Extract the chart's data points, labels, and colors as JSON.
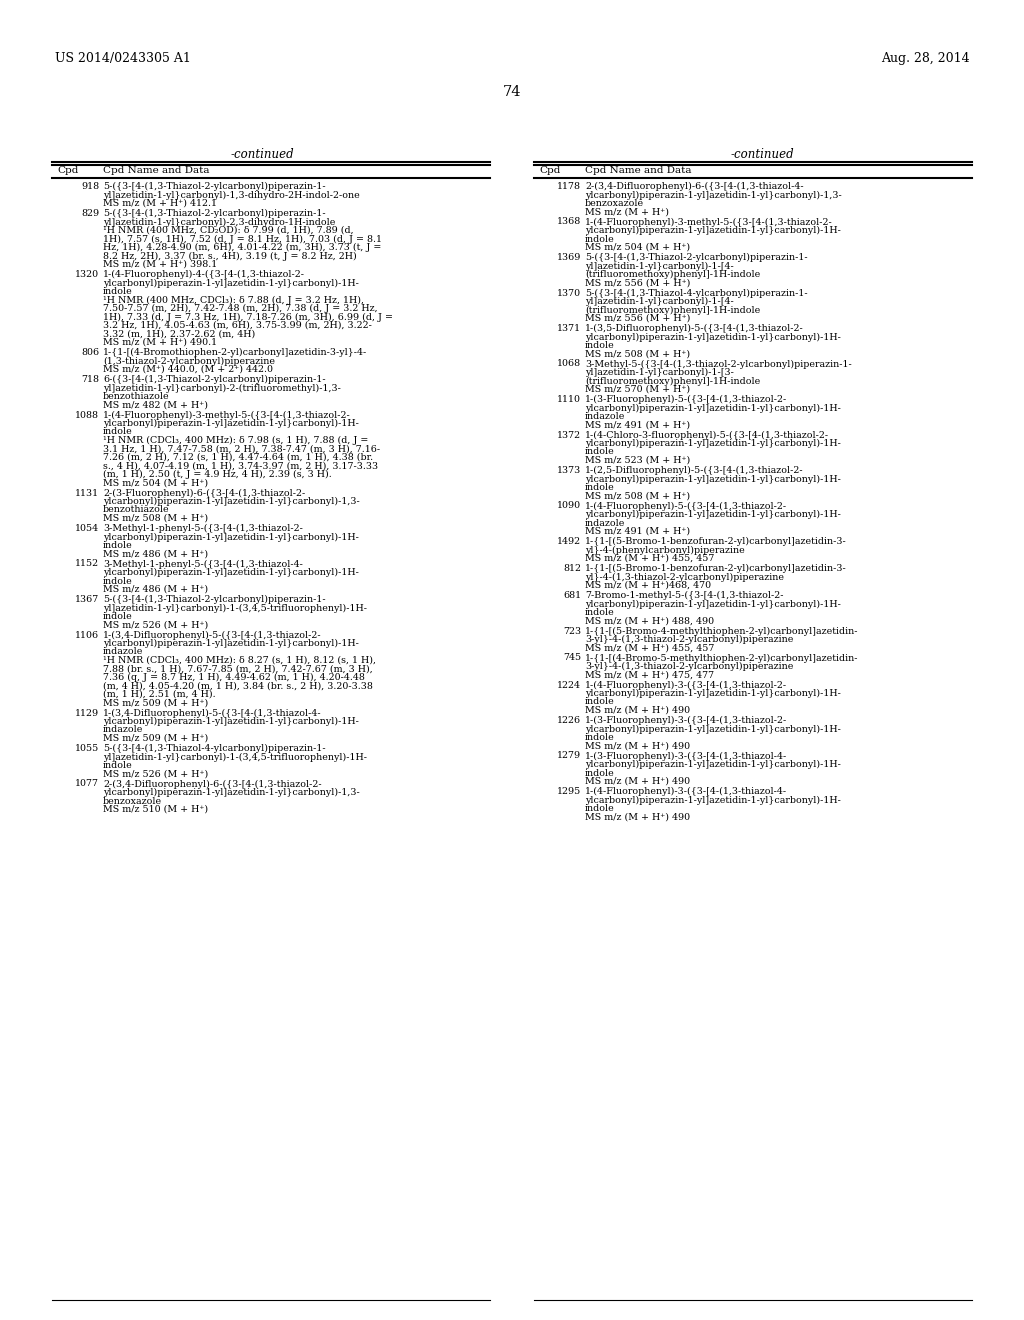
{
  "background_color": "#ffffff",
  "header_left": "US 2014/0243305 A1",
  "header_right": "Aug. 28, 2014",
  "page_number": "74",
  "continued_label": "-continued",
  "col_header_cpd": "Cpd",
  "col_header_data": "Cpd Name and Data",
  "left_column": [
    {
      "cpd": "918",
      "text": "5-({3-[4-(1,3-Thiazol-2-ylcarbonyl)piperazin-1-\nyl]azetidin-1-yl}carbonyl)-1,3-dihydro-2H-indol-2-one\nMS m/z (M + H⁺) 412.1"
    },
    {
      "cpd": "829",
      "text": "5-({3-[4-(1,3-Thiazol-2-ylcarbonyl)piperazin-1-\nyl]azetidin-1-yl}carbonyl)-2,3-dihydro-1H-indole\n¹H NMR (400 MHz, CD₂OD): δ 7.99 (d, 1H), 7.89 (d,\n1H), 7.57 (s, 1H), 7.52 (d, J = 8.1 Hz, 1H), 7.03 (d, J = 8.1\nHz, 1H), 4.28-4.90 (m, 6H), 4.01-4.22 (m, 3H), 3.73 (t, J =\n8.2 Hz, 2H), 3.37 (br. s., 4H), 3.19 (t, J = 8.2 Hz, 2H)\nMS m/z (M + H⁺) 398.1"
    },
    {
      "cpd": "1320",
      "text": "1-(4-Fluorophenyl)-4-({3-[4-(1,3-thiazol-2-\nylcarbonyl)piperazin-1-yl]azetidin-1-yl}carbonyl)-1H-\nindole\n¹H NMR (400 MHz, CDCl₃): δ 7.88 (d, J = 3.2 Hz, 1H),\n7.50-7.57 (m, 2H), 7.42-7.48 (m, 2H), 7.38 (d, J = 3.2 Hz,\n1H), 7.33 (d, J = 7.3 Hz, 1H), 7.18-7.26 (m, 3H), 6.99 (d, J =\n3.2 Hz, 1H), 4.05-4.63 (m, 6H), 3.75-3.99 (m, 2H), 3.22-\n3.32 (m, 1H), 2.37-2.62 (m, 4H)\nMS m/z (M + H⁺) 490.1"
    },
    {
      "cpd": "806",
      "text": "1-{1-[(4-Bromothiophen-2-yl)carbonyl]azetidin-3-yl}-4-\n(1,3-thiazol-2-ylcarbonyl)piperazine\nMS m/z (M⁺) 440.0, (M + 2⁺) 442.0"
    },
    {
      "cpd": "718",
      "text": "6-({3-[4-(1,3-Thiazol-2-ylcarbonyl)piperazin-1-\nyl]azetidin-1-yl}carbonyl)-2-(trifluoromethyl)-1,3-\nbenzothiazole\nMS m/z 482 (M + H⁺)"
    },
    {
      "cpd": "1088",
      "text": "1-(4-Fluorophenyl)-3-methyl-5-({3-[4-(1,3-thiazol-2-\nylcarbonyl)piperazin-1-yl]azetidin-1-yl}carbonyl)-1H-\nindole\n¹H NMR (CDCl₃, 400 MHz): δ 7.98 (s, 1 H), 7.88 (d, J =\n3.1 Hz, 1 H), 7.47-7.58 (m, 2 H), 7.38-7.47 (m, 3 H), 7.16-\n7.26 (m, 2 H), 7.12 (s, 1 H), 4.47-4.64 (m, 1 H), 4.38 (br.\ns., 4 H), 4.07-4.19 (m, 1 H), 3.74-3.97 (m, 2 H), 3.17-3.33\n(m, 1 H), 2.50 (t, J = 4.9 Hz, 4 H), 2.39 (s, 3 H).\nMS m/z 504 (M + H⁺)"
    },
    {
      "cpd": "1131",
      "text": "2-(3-Fluorophenyl)-6-({3-[4-(1,3-thiazol-2-\nylcarbonyl)piperazin-1-yl]azetidin-1-yl}carbonyl)-1,3-\nbenzothiazole\nMS m/z 508 (M + H⁺)"
    },
    {
      "cpd": "1054",
      "text": "3-Methyl-1-phenyl-5-({3-[4-(1,3-thiazol-2-\nylcarbonyl)piperazin-1-yl]azetidin-1-yl}carbonyl)-1H-\nindole\nMS m/z 486 (M + H⁺)"
    },
    {
      "cpd": "1152",
      "text": "3-Methyl-1-phenyl-5-({3-[4-(1,3-thiazol-4-\nylcarbonyl)piperazin-1-yl]azetidin-1-yl}carbonyl)-1H-\nindole\nMS m/z 486 (M + H⁺)"
    },
    {
      "cpd": "1367",
      "text": "5-({3-[4-(1,3-Thiazol-2-ylcarbonyl)piperazin-1-\nyl]azetidin-1-yl}carbonyl)-1-(3,4,5-trifluorophenyl)-1H-\nindole\nMS m/z 526 (M + H⁺)"
    },
    {
      "cpd": "1106",
      "text": "1-(3,4-Difluorophenyl)-5-({3-[4-(1,3-thiazol-2-\nylcarbonyl)piperazin-1-yl]azetidin-1-yl}carbonyl)-1H-\nindazole\n¹H NMR (CDCl₃, 400 MHz): δ 8.27 (s, 1 H), 8.12 (s, 1 H),\n7.88 (br. s., 1 H), 7.67-7.85 (m, 2 H), 7.42-7.67 (m, 3 H),\n7.36 (q, J = 8.7 Hz, 1 H), 4.49-4.62 (m, 1 H), 4.20-4.48\n(m, 4 H), 4.05-4.20 (m, 1 H), 3.84 (br. s., 2 H), 3.20-3.38\n(m, 1 H), 2.51 (m, 4 H).\nMS m/z 509 (M + H⁺)"
    },
    {
      "cpd": "1129",
      "text": "1-(3,4-Difluorophenyl)-5-({3-[4-(1,3-thiazol-4-\nylcarbonyl)piperazin-1-yl]azetidin-1-yl}carbonyl)-1H-\nindazole\nMS m/z 509 (M + H⁺)"
    },
    {
      "cpd": "1055",
      "text": "5-({3-[4-(1,3-Thiazol-4-ylcarbonyl)piperazin-1-\nyl]azetidin-1-yl}carbonyl)-1-(3,4,5-trifluorophenyl)-1H-\nindole\nMS m/z 526 (M + H⁺)"
    },
    {
      "cpd": "1077",
      "text": "2-(3,4-Difluorophenyl)-6-({3-[4-(1,3-thiazol-2-\nylcarbonyl)piperazin-1-yl]azetidin-1-yl}carbonyl)-1,3-\nbenzoxazole\nMS m/z 510 (M + H⁺)"
    }
  ],
  "right_column": [
    {
      "cpd": "1178",
      "text": "2-(3,4-Difluorophenyl)-6-({3-[4-(1,3-thiazol-4-\nylcarbonyl)piperazin-1-yl]azetidin-1-yl}carbonyl)-1,3-\nbenzoxazole\nMS m/z (M + H⁺)"
    },
    {
      "cpd": "1368",
      "text": "1-(4-Fluorophenyl)-3-methyl-5-({3-[4-(1,3-thiazol-2-\nylcarbonyl)piperazin-1-yl]azetidin-1-yl}carbonyl)-1H-\nindole\nMS m/z 504 (M + H⁺)"
    },
    {
      "cpd": "1369",
      "text": "5-({3-[4-(1,3-Thiazol-2-ylcarbonyl)piperazin-1-\nyl]azetidin-1-yl}carbonyl)-1-[4-\n(trifluoromethoxy)phenyl]-1H-indole\nMS m/z 556 (M + H⁺)"
    },
    {
      "cpd": "1370",
      "text": "5-({3-[4-(1,3-Thiazol-4-ylcarbonyl)piperazin-1-\nyl]azetidin-1-yl}carbonyl)-1-[4-\n(trifluoromethoxy)phenyl]-1H-indole\nMS m/z 556 (M + H⁺)"
    },
    {
      "cpd": "1371",
      "text": "1-(3,5-Difluorophenyl)-5-({3-[4-(1,3-thiazol-2-\nylcarbonyl)piperazin-1-yl]azetidin-1-yl}carbonyl)-1H-\nindole\nMS m/z 508 (M + H⁺)"
    },
    {
      "cpd": "1068",
      "text": "3-Methyl-5-({3-[4-(1,3-thiazol-2-ylcarbonyl)piperazin-1-\nyl]azetidin-1-yl}carbonyl)-1-[3-\n(trifluoromethoxy)phenyl]-1H-indole\nMS m/z 570 (M + H⁺)"
    },
    {
      "cpd": "1110",
      "text": "1-(3-Fluorophenyl)-5-({3-[4-(1,3-thiazol-2-\nylcarbonyl)piperazin-1-yl]azetidin-1-yl}carbonyl)-1H-\nindazole\nMS m/z 491 (M + H⁺)"
    },
    {
      "cpd": "1372",
      "text": "1-(4-Chloro-3-fluorophenyl)-5-({3-[4-(1,3-thiazol-2-\nylcarbonyl)piperazin-1-yl]azetidin-1-yl}carbonyl)-1H-\nindole\nMS m/z 523 (M + H⁺)"
    },
    {
      "cpd": "1373",
      "text": "1-(2,5-Difluorophenyl)-5-({3-[4-(1,3-thiazol-2-\nylcarbonyl)piperazin-1-yl]azetidin-1-yl}carbonyl)-1H-\nindole\nMS m/z 508 (M + H⁺)"
    },
    {
      "cpd": "1090",
      "text": "1-(4-Fluorophenyl)-5-({3-[4-(1,3-thiazol-2-\nylcarbonyl)piperazin-1-yl]azetidin-1-yl}carbonyl)-1H-\nindazole\nMS m/z 491 (M + H⁺)"
    },
    {
      "cpd": "1492",
      "text": "1-{1-[(5-Bromo-1-benzofuran-2-yl)carbonyl]azetidin-3-\nyl}-4-(phenylcarbonyl)piperazine\nMS m/z (M + H⁺) 455, 457"
    },
    {
      "cpd": "812",
      "text": "1-{1-[(5-Bromo-1-benzofuran-2-yl)carbonyl]azetidin-3-\nyl}-4-(1,3-thiazol-2-ylcarbonyl)piperazine\nMS m/z (M + H⁺)468, 470"
    },
    {
      "cpd": "681",
      "text": "7-Bromo-1-methyl-5-({3-[4-(1,3-thiazol-2-\nylcarbonyl)piperazin-1-yl]azetidin-1-yl}carbonyl)-1H-\nindole\nMS m/z (M + H⁺) 488, 490"
    },
    {
      "cpd": "723",
      "text": "1-{1-[(5-Bromo-4-methylthiophen-2-yl)carbonyl]azetidin-\n3-yl}-4-(1,3-thiazol-2-ylcarbonyl)piperazine\nMS m/z (M + H⁺) 455, 457"
    },
    {
      "cpd": "745",
      "text": "1-{1-[(4-Bromo-5-methylthiophen-2-yl)carbonyl]azetidin-\n3-yl}-4-(1,3-thiazol-2-ylcarbonyl)piperazine\nMS m/z (M + H⁺) 475, 477"
    },
    {
      "cpd": "1224",
      "text": "1-(4-Fluorophenyl)-3-({3-[4-(1,3-thiazol-2-\nylcarbonyl)piperazin-1-yl]azetidin-1-yl}carbonyl)-1H-\nindole\nMS m/z (M + H⁺) 490"
    },
    {
      "cpd": "1226",
      "text": "1-(3-Fluorophenyl)-3-({3-[4-(1,3-thiazol-2-\nylcarbonyl)piperazin-1-yl]azetidin-1-yl}carbonyl)-1H-\nindole\nMS m/z (M + H⁺) 490"
    },
    {
      "cpd": "1279",
      "text": "1-(3-Fluorophenyl)-3-({3-[4-(1,3-thiazol-4-\nylcarbonyl)piperazin-1-yl]azetidin-1-yl}carbonyl)-1H-\nindole\nMS m/z (M + H⁺) 490"
    },
    {
      "cpd": "1295",
      "text": "1-(4-Fluorophenyl)-3-({3-[4-(1,3-thiazol-4-\nylcarbonyl)piperazin-1-yl]azetidin-1-yl}carbonyl)-1H-\nindole\nMS m/z (M + H⁺) 490"
    }
  ]
}
